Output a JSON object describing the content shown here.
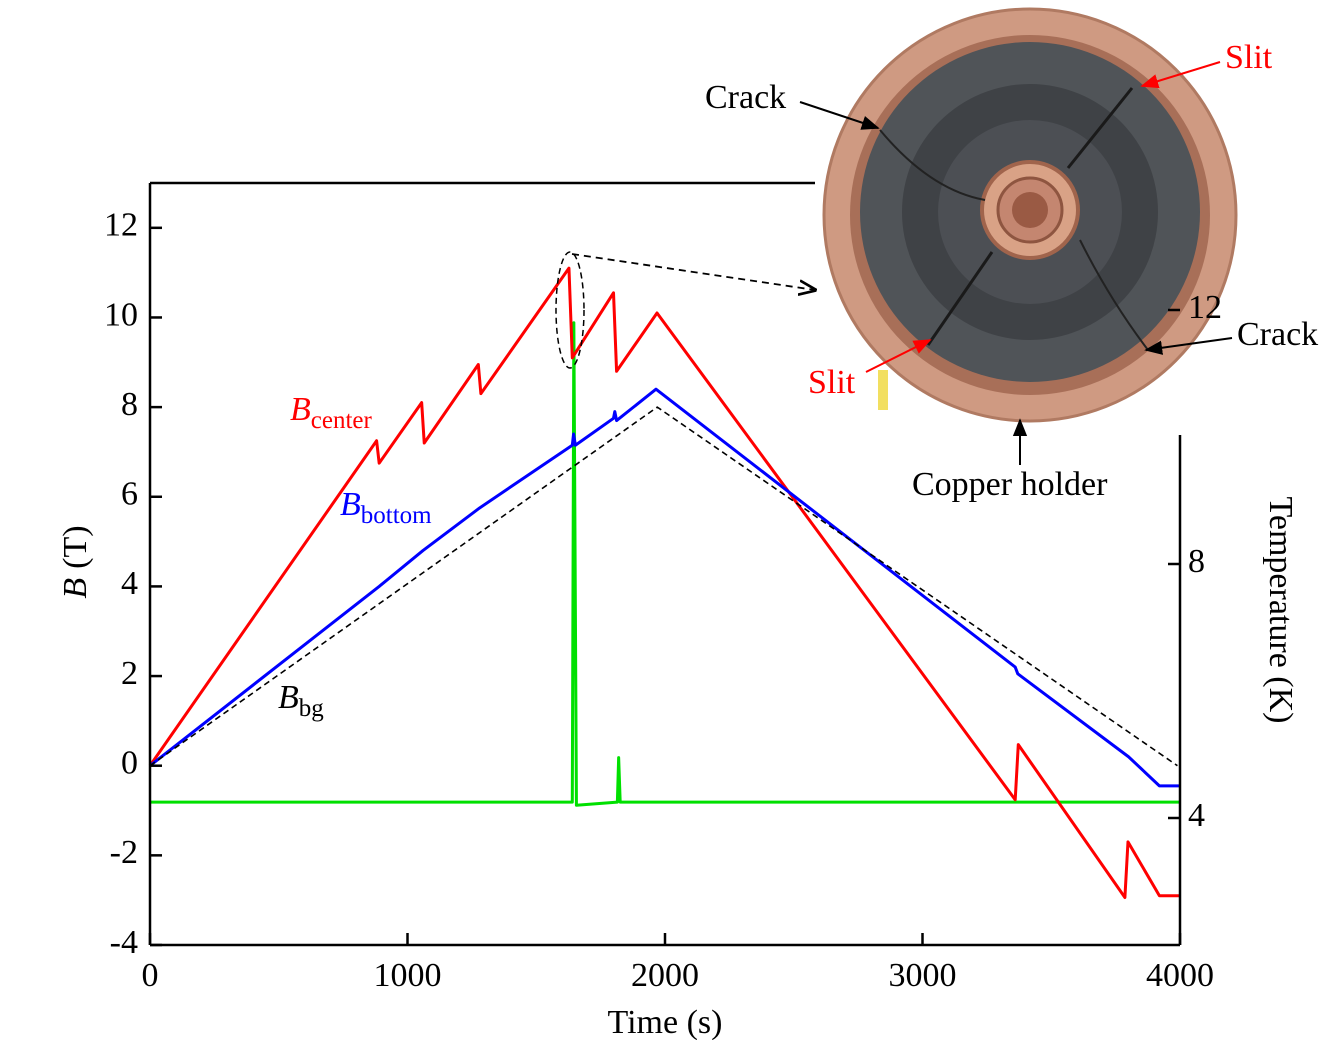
{
  "chart_data": {
    "type": "line",
    "xlabel": "Time (s)",
    "ylabel": {
      "symbol": "B",
      "unit": "(T)"
    },
    "y2label": "Temperature (K)",
    "xlim": [
      0,
      4000
    ],
    "xticks": [
      0,
      1000,
      2000,
      3000,
      4000
    ],
    "ylim": [
      -4,
      13
    ],
    "yticks": [
      -4,
      -2,
      0,
      2,
      4,
      6,
      8,
      10,
      12
    ],
    "y2lim": [
      2,
      14
    ],
    "y2ticks": [
      4,
      8,
      12
    ],
    "series": [
      {
        "name": "B",
        "subscript": "center",
        "color": "#ff0000",
        "dashed": false,
        "x": [
          0,
          880,
          890,
          1055,
          1065,
          1275,
          1285,
          1627,
          1640,
          1800,
          1812,
          1969,
          3360,
          3372,
          3786,
          3798,
          3920,
          4000
        ],
        "values": [
          0,
          7.25,
          6.75,
          8.1,
          7.2,
          8.95,
          8.3,
          11.1,
          9.1,
          10.55,
          8.8,
          10.1,
          -0.76,
          0.47,
          -2.94,
          -1.7,
          -2.9,
          -2.9
        ]
      },
      {
        "name": "B",
        "subscript": "bottom",
        "color": "#0000ff",
        "dashed": false,
        "x": [
          0,
          890,
          1060,
          1280,
          1640,
          1645,
          1652,
          1800,
          1805,
          1812,
          1965,
          3360,
          3370,
          3800,
          3920,
          4000
        ],
        "values": [
          0,
          4.0,
          4.8,
          5.75,
          7.15,
          7.4,
          7.15,
          7.75,
          7.9,
          7.7,
          8.4,
          2.2,
          2.05,
          0.2,
          -0.45,
          -0.45
        ]
      },
      {
        "name": "B",
        "subscript": "bg",
        "color": "#000000",
        "dashed": true,
        "x": [
          0,
          1970,
          3990
        ],
        "values": [
          0,
          8.0,
          0.0
        ]
      },
      {
        "color": "#00e000",
        "dashed": false,
        "axis": "y2",
        "x": [
          0,
          1640,
          1646,
          1656,
          1815,
          1820,
          1826,
          4000
        ],
        "values": [
          4.25,
          4.25,
          11.8,
          4.2,
          4.25,
          4.95,
          4.25,
          4.25
        ]
      }
    ],
    "annotations": [
      "Crack",
      "Slit",
      "Crack",
      "Slit",
      "Copper holder"
    ]
  }
}
